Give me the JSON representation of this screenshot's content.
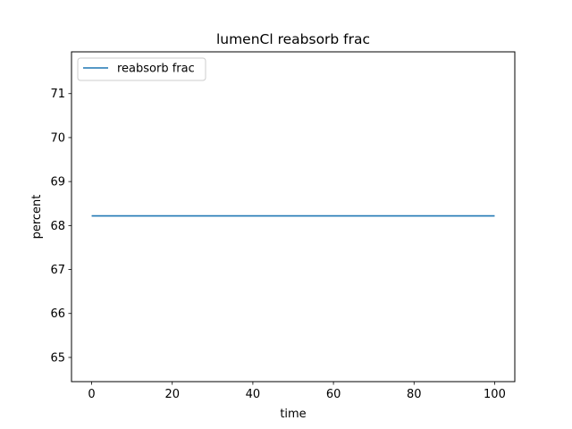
{
  "chart_data": {
    "type": "line",
    "title": "lumenCl reabsorb frac",
    "xlabel": "time",
    "ylabel": "percent",
    "xlim": [
      -5,
      105
    ],
    "ylim": [
      64.45,
      71.95
    ],
    "xticks": [
      0,
      20,
      40,
      60,
      80,
      100
    ],
    "yticks": [
      65,
      66,
      67,
      68,
      69,
      70,
      71
    ],
    "grid": false,
    "legend_position": "upper-left",
    "series": [
      {
        "name": "reabsorb frac",
        "color": "#1f77b4",
        "x": [
          0,
          100
        ],
        "y": [
          68.22,
          68.22
        ]
      }
    ]
  }
}
